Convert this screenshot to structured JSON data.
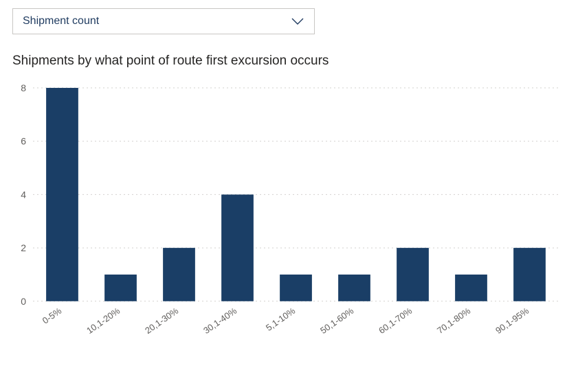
{
  "dropdown": {
    "selected": "Shipment count"
  },
  "chart": {
    "type": "bar",
    "title": "Shipments by what point of route first excursion occurs",
    "categories": [
      "0-5%",
      "10,1-20%",
      "20,1-30%",
      "30,1-40%",
      "5,1-10%",
      "50,1-60%",
      "60,1-70%",
      "70,1-80%",
      "90,1-95%"
    ],
    "values": [
      8,
      1,
      2,
      4,
      1,
      1,
      2,
      1,
      2
    ],
    "bar_color": "#1a3e66",
    "yticks": [
      0,
      2,
      4,
      6,
      8
    ],
    "ylim": [
      0,
      8
    ],
    "grid_color": "#d2d0ce",
    "background_color": "#ffffff",
    "title_fontsize": 19,
    "tick_fontsize": 14,
    "xlabel_rotation_deg": -35,
    "bar_width_ratio": 0.55
  }
}
